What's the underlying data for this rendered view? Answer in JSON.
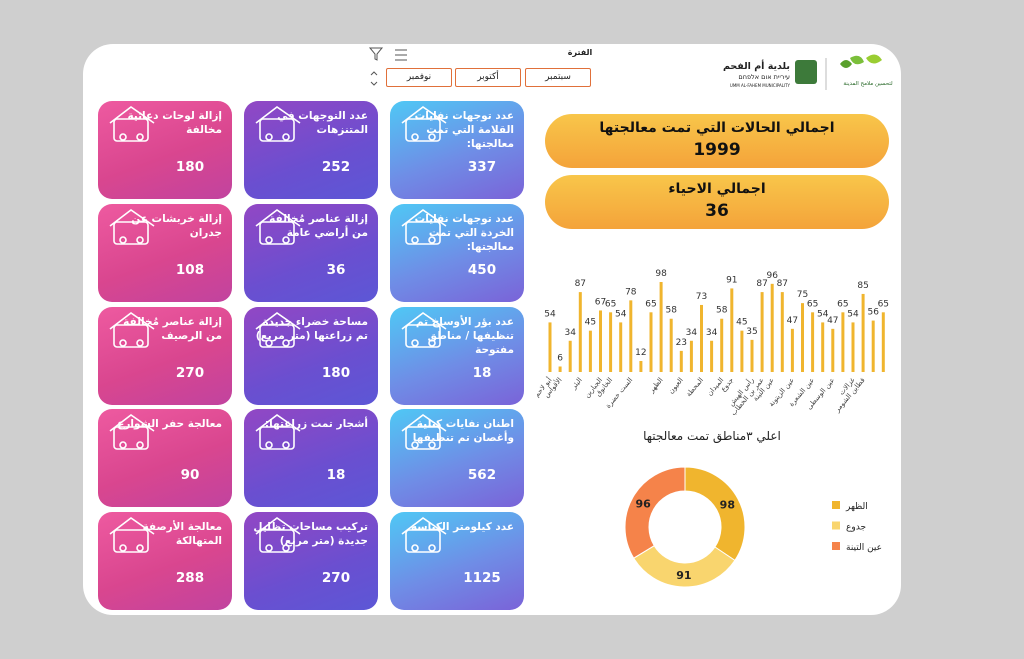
{
  "header": {
    "logo_title": "بلدية أم الفحم",
    "logo_hebrew": "עיריית אום אלפחם",
    "logo_english": "UMM AL-FAHEM MUNICIPALITY",
    "slogan": "لتحسين ملامح المدينة"
  },
  "filter": {
    "label": "الفترة",
    "options": [
      "سبتمبر",
      "أكتوبر",
      "نوفمبر"
    ]
  },
  "totals": [
    {
      "label": "اجمالي الحالات التي تمت معالجتها",
      "value": 1999
    },
    {
      "label": "اجمالي الاحياء",
      "value": 36
    }
  ],
  "cards": [
    {
      "title": "عدد توجهات نفايات القلامة التي تمت معالجتها:",
      "value": 337
    },
    {
      "title": "عدد التوجهات في المتنزهات",
      "value": 252
    },
    {
      "title": "إزالة لوحات دعائية مخالفة",
      "value": 180
    },
    {
      "title": "عدد توجهات نفايات الخردة التي تمت معالجتها:",
      "value": 450
    },
    {
      "title": "إزالة عناصر مُخالفة من أراضي عامة",
      "value": 36
    },
    {
      "title": "إزالة خربشات عن جدران",
      "value": 108
    },
    {
      "title": "عدد بؤر الأوساخ تم تنظيفها / مناطق مفتوحة",
      "value": 18
    },
    {
      "title": "مساحة خضراء جديدة تم زراعتها (متر مربع)",
      "value": 180
    },
    {
      "title": "إزالة عناصر مُخالفة من الرصيف",
      "value": 270
    },
    {
      "title": "اطنان نفايات كتلية وأغصان تم تنظيفها",
      "value": 562
    },
    {
      "title": "أشجار تمت زراعتها:",
      "value": 18
    },
    {
      "title": "معالجة حفر الشوارع",
      "value": 90
    },
    {
      "title": "عدد كيلومتر الكناسة",
      "value": 1125
    },
    {
      "title": "تركيب مساحات تظليل جديدة (متر مربع)",
      "value": 270
    },
    {
      "title": "معالجة الأرصفة المتهالكة",
      "value": 288
    }
  ],
  "chart_data": [
    {
      "type": "bar",
      "color": "#f0b52e",
      "categories": [
        "أبو لاحم",
        "الأقواس",
        null,
        "البئر",
        null,
        "الجبارين",
        "الخانوق",
        null,
        "الست خضرة",
        null,
        null,
        "الظهر",
        null,
        "العيون",
        null,
        "المحطة",
        null,
        "الميدان",
        "جدوع",
        null,
        "رأس الهيش",
        "عمر بن الخطاب",
        "عين التينة",
        null,
        "عين الزيتونة",
        null,
        "عين الشعرة",
        null,
        "عين الوسطى",
        null,
        "غزالات",
        "قطاين الشومر",
        null,
        null
      ],
      "values": [
        54,
        6,
        34,
        87,
        45,
        67,
        65,
        54,
        78,
        12,
        65,
        98,
        58,
        23,
        34,
        73,
        34,
        58,
        91,
        45,
        35,
        87,
        96,
        87,
        47,
        75,
        65,
        54,
        47,
        65,
        54,
        85,
        56,
        65
      ]
    },
    {
      "type": "pie",
      "title": "اعلي  ٣مناطق تمت معالجتها",
      "categories": [
        "الظهر",
        "جدوع",
        "عين التينة"
      ],
      "values": [
        98,
        91,
        96
      ],
      "colors": [
        "#f0b52e",
        "#f9d56e",
        "#f5834a"
      ]
    }
  ]
}
